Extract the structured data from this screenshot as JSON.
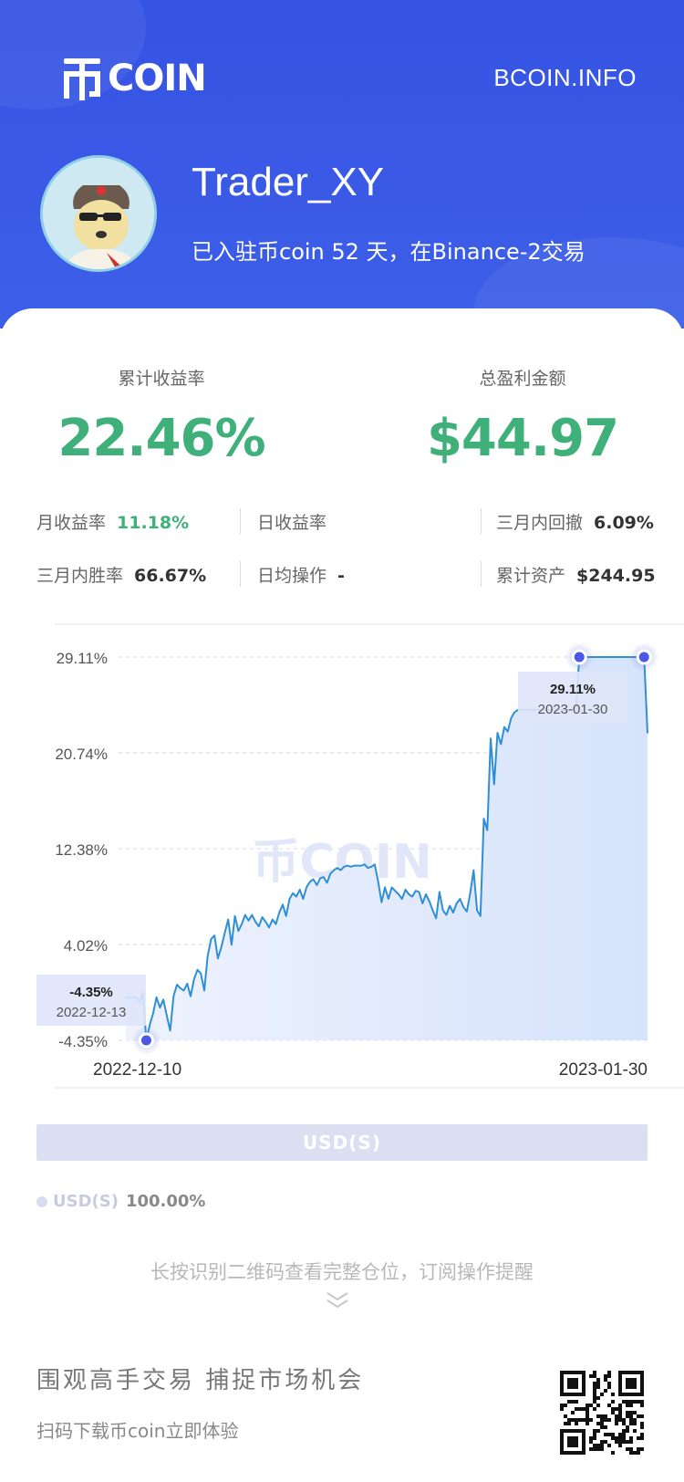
{
  "brand": {
    "logo_text": "COIN",
    "site": "BCOIN.INFO"
  },
  "profile": {
    "username": "Trader_XY",
    "subline": "已入驻币coin 52 天，在Binance-2交易"
  },
  "kpis": [
    {
      "label": "累计收益率",
      "value": "22.46%"
    },
    {
      "label": "总盈利金额",
      "value": "$44.97"
    }
  ],
  "stats": {
    "monthly_return": {
      "label": "月收益率",
      "value": "11.18%"
    },
    "daily_return": {
      "label": "日收益率",
      "value": ""
    },
    "drawdown_3m": {
      "label": "三月内回撤",
      "value": "6.09%"
    },
    "winrate_3m": {
      "label": "三月内胜率",
      "value": "66.67%"
    },
    "daily_ops": {
      "label": "日均操作",
      "value": "-"
    },
    "total_assets": {
      "label": "累计资产",
      "value": "$244.95"
    }
  },
  "chart_data": {
    "type": "area",
    "x_start": "2022-12-10",
    "x_end": "2023-01-30",
    "xtick_labels": [
      "2022-12-10",
      "2023-01-30"
    ],
    "ytick_labels": [
      "29.11%",
      "20.74%",
      "12.38%",
      "4.02%",
      "-4.35%"
    ],
    "ylim": [
      -4.35,
      29.11
    ],
    "watermark": "币COIN",
    "series": [
      {
        "values": [
          -0.6,
          -0.6,
          -0.6,
          -0.6,
          -1.0,
          -0.2,
          -4.35,
          -3.0,
          -2.0,
          -0.6,
          -1.5,
          -0.8,
          -2.2,
          -3.5,
          -0.5,
          0.5,
          0.2,
          0.0,
          0.6,
          -0.5,
          1.0,
          1.8,
          1.5,
          0.0,
          3.0,
          4.5,
          4.8,
          2.8,
          3.8,
          5.0,
          6.2,
          4.0,
          6.5,
          5.2,
          5.8,
          6.6,
          6.1,
          6.6,
          6.0,
          5.6,
          6.4,
          6.0,
          5.5,
          6.2,
          5.8,
          6.8,
          7.5,
          6.5,
          8.0,
          8.5,
          8.2,
          8.8,
          8.0,
          9.0,
          9.5,
          9.7,
          9.2,
          9.8,
          9.9,
          9.4,
          10.2,
          10.5,
          10.7,
          10.5,
          10.8,
          10.9,
          10.8,
          10.9,
          10.9,
          10.9,
          11.0,
          10.7,
          10.8,
          11.0,
          9.5,
          7.7,
          9.0,
          8.0,
          9.0,
          8.7,
          8.4,
          8.0,
          8.8,
          8.4,
          8.2,
          8.7,
          8.6,
          7.6,
          8.4,
          7.8,
          7.0,
          6.3,
          8.6,
          7.0,
          6.6,
          7.4,
          6.8,
          7.6,
          8.0,
          7.3,
          6.9,
          8.5,
          10.5,
          7.0,
          6.5,
          15.0,
          14.0,
          22.0,
          18.0,
          22.5,
          21.5,
          23.0,
          22.6,
          23.8,
          24.3,
          24.5,
          24.5,
          24.5,
          24.5,
          24.5,
          24.5,
          24.5,
          24.5,
          24.5,
          24.5,
          24.5,
          24.5,
          24.5,
          24.5,
          24.5,
          24.5,
          24.5,
          24.5,
          29.11,
          29.11,
          29.11,
          29.11,
          29.11,
          29.11,
          29.11,
          29.11,
          29.11,
          29.11,
          29.11,
          29.11,
          29.11,
          29.11,
          29.11,
          29.11,
          29.11,
          29.11,
          29.11,
          29.11,
          22.46
        ]
      }
    ],
    "annotations": [
      {
        "date": "2022-12-13",
        "value": -4.35,
        "label": "-4.35%",
        "date_label": "2022-12-13"
      },
      {
        "date": "2023-01-30",
        "value": 29.11,
        "label": "29.11%",
        "date_label": "2023-01-30"
      }
    ]
  },
  "asset_bar": {
    "label": "USD(S)"
  },
  "legend": {
    "name": "USD(S)",
    "value": "100.00%"
  },
  "hint": "长按识别二维码查看完整仓位，订阅操作提醒",
  "footer": {
    "slogan": "围观高手交易  捕捉市场机会",
    "cta": "扫码下载币coin立即体验"
  },
  "colors": {
    "header_blue": "#3553e3",
    "positive_green": "#3fb07a",
    "line_blue": "#2f8fd6",
    "marker_blue": "#4a57e8"
  }
}
